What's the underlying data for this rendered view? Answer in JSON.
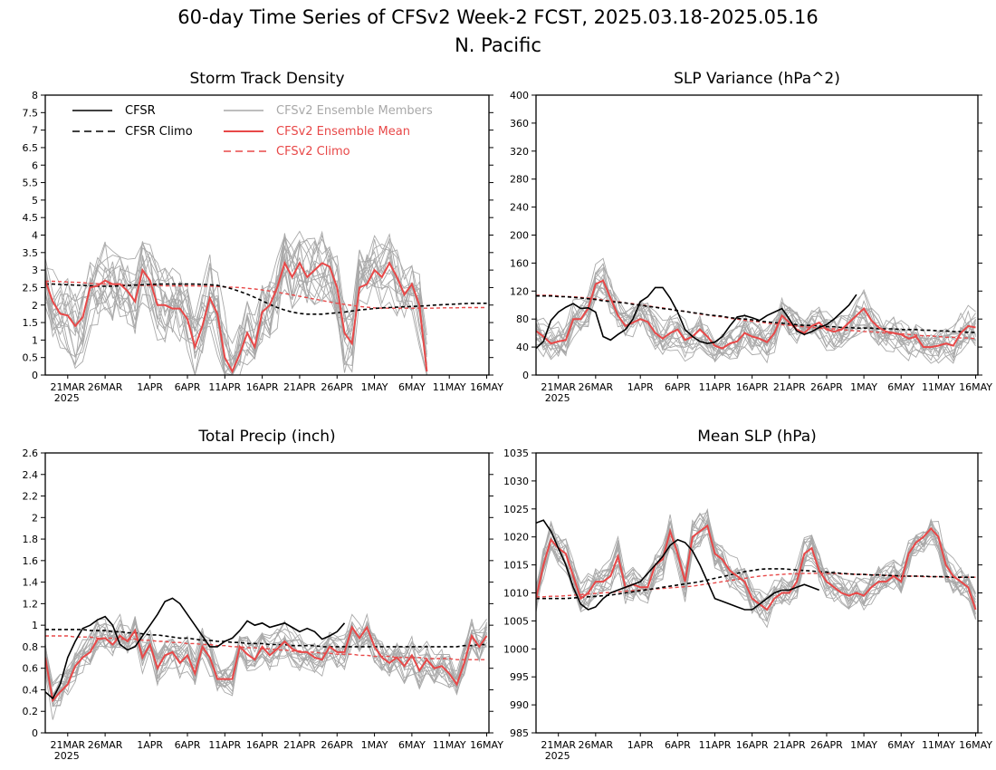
{
  "figure": {
    "title_line1": "60-day Time Series of CFSv2 Week-2 FCST, 2025.03.18-2025.05.16",
    "title_line2": "N. Pacific"
  },
  "colors": {
    "cfsr": "#000000",
    "cfsv2_members": "#a9a9a9",
    "cfsv2_mean": "#e84848"
  },
  "legend": {
    "cfsr": "CFSR",
    "cfsr_climo": "CFSR Climo",
    "members": "CFSv2 Ensemble Members",
    "mean": "CFSv2 Ensemble Mean",
    "cfsv2_climo": "CFSv2 Climo"
  },
  "x_axis": {
    "ticks": [
      "21MAR",
      "26MAR",
      "1APR",
      "6APR",
      "11APR",
      "16APR",
      "21APR",
      "26APR",
      "1MAY",
      "6MAY",
      "11MAY",
      "16MAY"
    ],
    "tick_days": [
      3,
      8,
      14,
      19,
      24,
      29,
      34,
      39,
      44,
      49,
      54,
      59
    ],
    "year_label": "2025",
    "start": "2025-03-18",
    "end": "2025-05-16"
  },
  "chart_data": [
    {
      "type": "line",
      "title": "Storm Track Density",
      "ylim": [
        0,
        8
      ],
      "yticks": [
        "0",
        "0.5",
        "1",
        "1.5",
        "2",
        "2.5",
        "3",
        "3.5",
        "4",
        "4.5",
        "5",
        "5.5",
        "6",
        "6.5",
        "7",
        "7.5",
        "8"
      ],
      "cfsr": [],
      "cfsr_climo": [
        2.6,
        2.6,
        2.59,
        2.58,
        2.57,
        2.56,
        2.55,
        2.54,
        2.54,
        2.54,
        2.55,
        2.56,
        2.57,
        2.58,
        2.59,
        2.6,
        2.6,
        2.6,
        2.6,
        2.6,
        2.6,
        2.59,
        2.58,
        2.56,
        2.52,
        2.46,
        2.39,
        2.31,
        2.22,
        2.12,
        2.02,
        1.93,
        1.86,
        1.8,
        1.76,
        1.74,
        1.74,
        1.74,
        1.76,
        1.78,
        1.8,
        1.83,
        1.86,
        1.88,
        1.9,
        1.92,
        1.93,
        1.94,
        1.95,
        1.96,
        1.97,
        1.98,
        2.0,
        2.01,
        2.02,
        2.03,
        2.04,
        2.05,
        2.05,
        2.05
      ],
      "cfsv2_climo": [
        2.68,
        2.68,
        2.67,
        2.66,
        2.65,
        2.64,
        2.62,
        2.61,
        2.6,
        2.59,
        2.58,
        2.57,
        2.57,
        2.56,
        2.56,
        2.56,
        2.55,
        2.55,
        2.55,
        2.55,
        2.55,
        2.54,
        2.54,
        2.53,
        2.52,
        2.51,
        2.5,
        2.48,
        2.46,
        2.43,
        2.4,
        2.37,
        2.33,
        2.29,
        2.25,
        2.21,
        2.17,
        2.13,
        2.09,
        2.05,
        2.02,
        1.99,
        1.96,
        1.94,
        1.92,
        1.91,
        1.91,
        1.91,
        1.91,
        1.91,
        1.91,
        1.91,
        1.91,
        1.92,
        1.92,
        1.92,
        1.93,
        1.93,
        1.93,
        1.93
      ],
      "cfsv2_mean": [
        2.7,
        2.1,
        1.75,
        1.7,
        1.4,
        1.65,
        2.5,
        2.55,
        2.7,
        2.6,
        2.6,
        2.4,
        2.1,
        3.0,
        2.7,
        2.0,
        2.0,
        1.9,
        1.9,
        1.6,
        0.8,
        1.4,
        2.2,
        1.75,
        0.5,
        0.1,
        0.6,
        1.2,
        0.8,
        1.8,
        2.0,
        2.5,
        3.2,
        2.8,
        3.2,
        2.8,
        3.0,
        3.2,
        3.1,
        2.5,
        1.2,
        0.9,
        2.5,
        2.6,
        3.0,
        2.8,
        3.2,
        2.8,
        2.3,
        2.6,
        2.0,
        0.1
      ],
      "member_count": 16,
      "member_spread": 0.9
    },
    {
      "type": "line",
      "title": "SLP Variance (hPa^2)",
      "ylim": [
        0,
        400
      ],
      "yticks": [
        "0",
        "40",
        "80",
        "120",
        "160",
        "200",
        "240",
        "280",
        "320",
        "360",
        "400"
      ],
      "cfsr": [
        38,
        48,
        78,
        90,
        97,
        102,
        95,
        96,
        90,
        55,
        50,
        58,
        65,
        80,
        105,
        112,
        125,
        125,
        110,
        90,
        65,
        55,
        48,
        45,
        47,
        55,
        70,
        83,
        85,
        82,
        78,
        85,
        90,
        95,
        80,
        63,
        58,
        62,
        68,
        72,
        80,
        90,
        100,
        115
      ],
      "cfsr_climo": [
        113,
        113,
        113,
        112,
        112,
        111,
        110,
        109,
        108,
        106,
        105,
        104,
        103,
        101,
        100,
        98,
        97,
        95,
        94,
        92,
        91,
        89,
        88,
        86,
        85,
        84,
        82,
        81,
        80,
        79,
        77,
        76,
        75,
        74,
        73,
        72,
        71,
        71,
        70,
        69,
        69,
        68,
        68,
        67,
        67,
        67,
        66,
        66,
        66,
        65,
        65,
        65,
        64,
        64,
        63,
        63,
        62,
        62,
        61,
        61
      ],
      "cfsv2_climo": [
        114,
        114,
        114,
        113,
        112,
        112,
        111,
        110,
        109,
        107,
        106,
        105,
        103,
        102,
        100,
        99,
        97,
        96,
        94,
        92,
        91,
        89,
        87,
        86,
        84,
        83,
        81,
        80,
        78,
        77,
        76,
        74,
        73,
        72,
        71,
        70,
        69,
        68,
        67,
        66,
        66,
        65,
        64,
        63,
        62,
        62,
        61,
        60,
        59,
        59,
        58,
        57,
        56,
        56,
        55,
        54,
        54,
        53,
        53,
        52
      ],
      "cfsv2_mean": [
        63,
        55,
        45,
        48,
        50,
        80,
        80,
        95,
        130,
        135,
        110,
        85,
        70,
        75,
        80,
        76,
        60,
        52,
        60,
        65,
        50,
        55,
        65,
        55,
        42,
        38,
        45,
        48,
        60,
        55,
        52,
        47,
        60,
        85,
        75,
        65,
        60,
        70,
        75,
        65,
        62,
        65,
        75,
        85,
        95,
        78,
        68,
        62,
        60,
        58,
        52,
        55,
        40,
        40,
        42,
        45,
        42,
        60,
        70,
        68
      ],
      "member_count": 16,
      "member_spread": 22
    },
    {
      "type": "line",
      "title": "Total Precip (inch)",
      "ylim": [
        0,
        2.6
      ],
      "yticks": [
        "0",
        "0.2",
        "0.4",
        "0.6",
        "0.8",
        "1",
        "1.2",
        "1.4",
        "1.6",
        "1.8",
        "2",
        "2.2",
        "2.4",
        "2.6"
      ],
      "cfsr": [
        0.38,
        0.32,
        0.45,
        0.7,
        0.85,
        0.97,
        1.0,
        1.05,
        1.08,
        1.0,
        0.82,
        0.77,
        0.8,
        0.9,
        1.0,
        1.1,
        1.22,
        1.25,
        1.2,
        1.1,
        1.0,
        0.9,
        0.8,
        0.8,
        0.85,
        0.88,
        0.95,
        1.04,
        1.0,
        1.02,
        0.98,
        1.0,
        1.02,
        0.98,
        0.94,
        0.97,
        0.94,
        0.87,
        0.9,
        0.94,
        1.02
      ],
      "cfsr_climo": [
        0.96,
        0.96,
        0.96,
        0.96,
        0.96,
        0.96,
        0.95,
        0.95,
        0.95,
        0.94,
        0.94,
        0.93,
        0.93,
        0.92,
        0.91,
        0.91,
        0.9,
        0.89,
        0.88,
        0.88,
        0.87,
        0.86,
        0.86,
        0.85,
        0.85,
        0.84,
        0.84,
        0.83,
        0.83,
        0.83,
        0.82,
        0.82,
        0.82,
        0.81,
        0.81,
        0.81,
        0.81,
        0.8,
        0.8,
        0.8,
        0.8,
        0.8,
        0.8,
        0.8,
        0.8,
        0.8,
        0.8,
        0.8,
        0.8,
        0.8,
        0.8,
        0.8,
        0.8,
        0.8,
        0.8,
        0.8,
        0.81,
        0.81,
        0.82,
        0.82
      ],
      "cfsv2_climo": [
        0.9,
        0.9,
        0.9,
        0.9,
        0.89,
        0.89,
        0.89,
        0.88,
        0.88,
        0.88,
        0.87,
        0.87,
        0.87,
        0.86,
        0.86,
        0.85,
        0.85,
        0.84,
        0.84,
        0.83,
        0.83,
        0.82,
        0.82,
        0.81,
        0.81,
        0.8,
        0.8,
        0.79,
        0.79,
        0.78,
        0.78,
        0.77,
        0.77,
        0.76,
        0.76,
        0.75,
        0.75,
        0.74,
        0.74,
        0.73,
        0.73,
        0.73,
        0.72,
        0.72,
        0.71,
        0.71,
        0.71,
        0.7,
        0.7,
        0.7,
        0.7,
        0.69,
        0.69,
        0.69,
        0.69,
        0.68,
        0.68,
        0.68,
        0.68,
        0.68
      ],
      "cfsv2_mean": [
        0.7,
        0.3,
        0.38,
        0.45,
        0.62,
        0.7,
        0.75,
        0.87,
        0.88,
        0.82,
        0.9,
        0.85,
        0.95,
        0.7,
        0.82,
        0.6,
        0.72,
        0.75,
        0.65,
        0.72,
        0.55,
        0.8,
        0.7,
        0.5,
        0.5,
        0.5,
        0.8,
        0.73,
        0.68,
        0.8,
        0.72,
        0.78,
        0.85,
        0.78,
        0.75,
        0.75,
        0.7,
        0.68,
        0.8,
        0.75,
        0.75,
        0.98,
        0.88,
        0.98,
        0.8,
        0.7,
        0.65,
        0.7,
        0.62,
        0.72,
        0.58,
        0.68,
        0.6,
        0.62,
        0.55,
        0.45,
        0.65,
        0.9,
        0.8,
        0.9
      ],
      "member_count": 16,
      "member_spread": 0.14
    },
    {
      "type": "line",
      "title": "Mean SLP (hPa)",
      "ylim": [
        985,
        1035
      ],
      "yticks": [
        "985",
        "990",
        "995",
        "1000",
        "1005",
        "1010",
        "1015",
        "1020",
        "1025",
        "1030",
        "1035"
      ],
      "cfsr": [
        1022.5,
        1023,
        1021,
        1018,
        1015,
        1011,
        1008,
        1007,
        1007.5,
        1009,
        1010,
        1010.5,
        1011,
        1011.5,
        1012,
        1013.5,
        1015,
        1016.5,
        1018.5,
        1019.5,
        1019,
        1017.5,
        1015,
        1012,
        1009,
        1008.5,
        1008,
        1007.5,
        1007,
        1007,
        1008,
        1009,
        1010,
        1010.5,
        1010.5,
        1011,
        1011.5,
        1011,
        1010.5
      ],
      "cfsr_climo": [
        1009,
        1009,
        1009,
        1009,
        1009,
        1009.1,
        1009.2,
        1009.3,
        1009.4,
        1009.5,
        1009.6,
        1009.8,
        1010,
        1010.2,
        1010.4,
        1010.6,
        1010.8,
        1011,
        1011.2,
        1011.4,
        1011.6,
        1011.8,
        1012,
        1012.3,
        1012.6,
        1012.9,
        1013.2,
        1013.5,
        1013.8,
        1014,
        1014.2,
        1014.3,
        1014.3,
        1014.3,
        1014.2,
        1014.1,
        1014,
        1013.9,
        1013.8,
        1013.7,
        1013.6,
        1013.5,
        1013.4,
        1013.3,
        1013.3,
        1013.2,
        1013.2,
        1013.1,
        1013.1,
        1013,
        1013,
        1013,
        1013,
        1012.9,
        1012.9,
        1012.9,
        1012.8,
        1012.8,
        1012.8,
        1012.8
      ],
      "cfsv2_climo": [
        1009.3,
        1009.3,
        1009.4,
        1009.4,
        1009.5,
        1009.6,
        1009.7,
        1009.8,
        1009.9,
        1010,
        1010.1,
        1010.2,
        1010.3,
        1010.4,
        1010.5,
        1010.6,
        1010.7,
        1010.8,
        1010.9,
        1011,
        1011.1,
        1011.2,
        1011.4,
        1011.6,
        1011.8,
        1012,
        1012.2,
        1012.4,
        1012.6,
        1012.8,
        1013,
        1013.1,
        1013.2,
        1013.3,
        1013.4,
        1013.4,
        1013.5,
        1013.5,
        1013.5,
        1013.5,
        1013.5,
        1013.4,
        1013.4,
        1013.3,
        1013.3,
        1013.2,
        1013.2,
        1013.1,
        1013.1,
        1013,
        1013,
        1013,
        1012.9,
        1012.9,
        1012.9,
        1012.8,
        1012.8,
        1012.8,
        1012.8,
        1012.8
      ],
      "cfsv2_mean": [
        1009,
        1015,
        1019.5,
        1018,
        1017,
        1013,
        1009,
        1010,
        1012,
        1012,
        1013,
        1016.5,
        1011,
        1011.5,
        1011,
        1011,
        1015,
        1016,
        1021,
        1017,
        1012,
        1020,
        1021,
        1022,
        1017,
        1016,
        1014,
        1013,
        1012,
        1009,
        1008,
        1007,
        1009,
        1010,
        1010,
        1012,
        1017,
        1018,
        1014,
        1012,
        1011,
        1010,
        1009.5,
        1010,
        1009.5,
        1011,
        1012,
        1012,
        1013,
        1012,
        1017,
        1019,
        1020,
        1021.5,
        1020,
        1015,
        1013,
        1012,
        1011,
        1007
      ],
      "member_count": 16,
      "member_spread": 2.6
    }
  ]
}
